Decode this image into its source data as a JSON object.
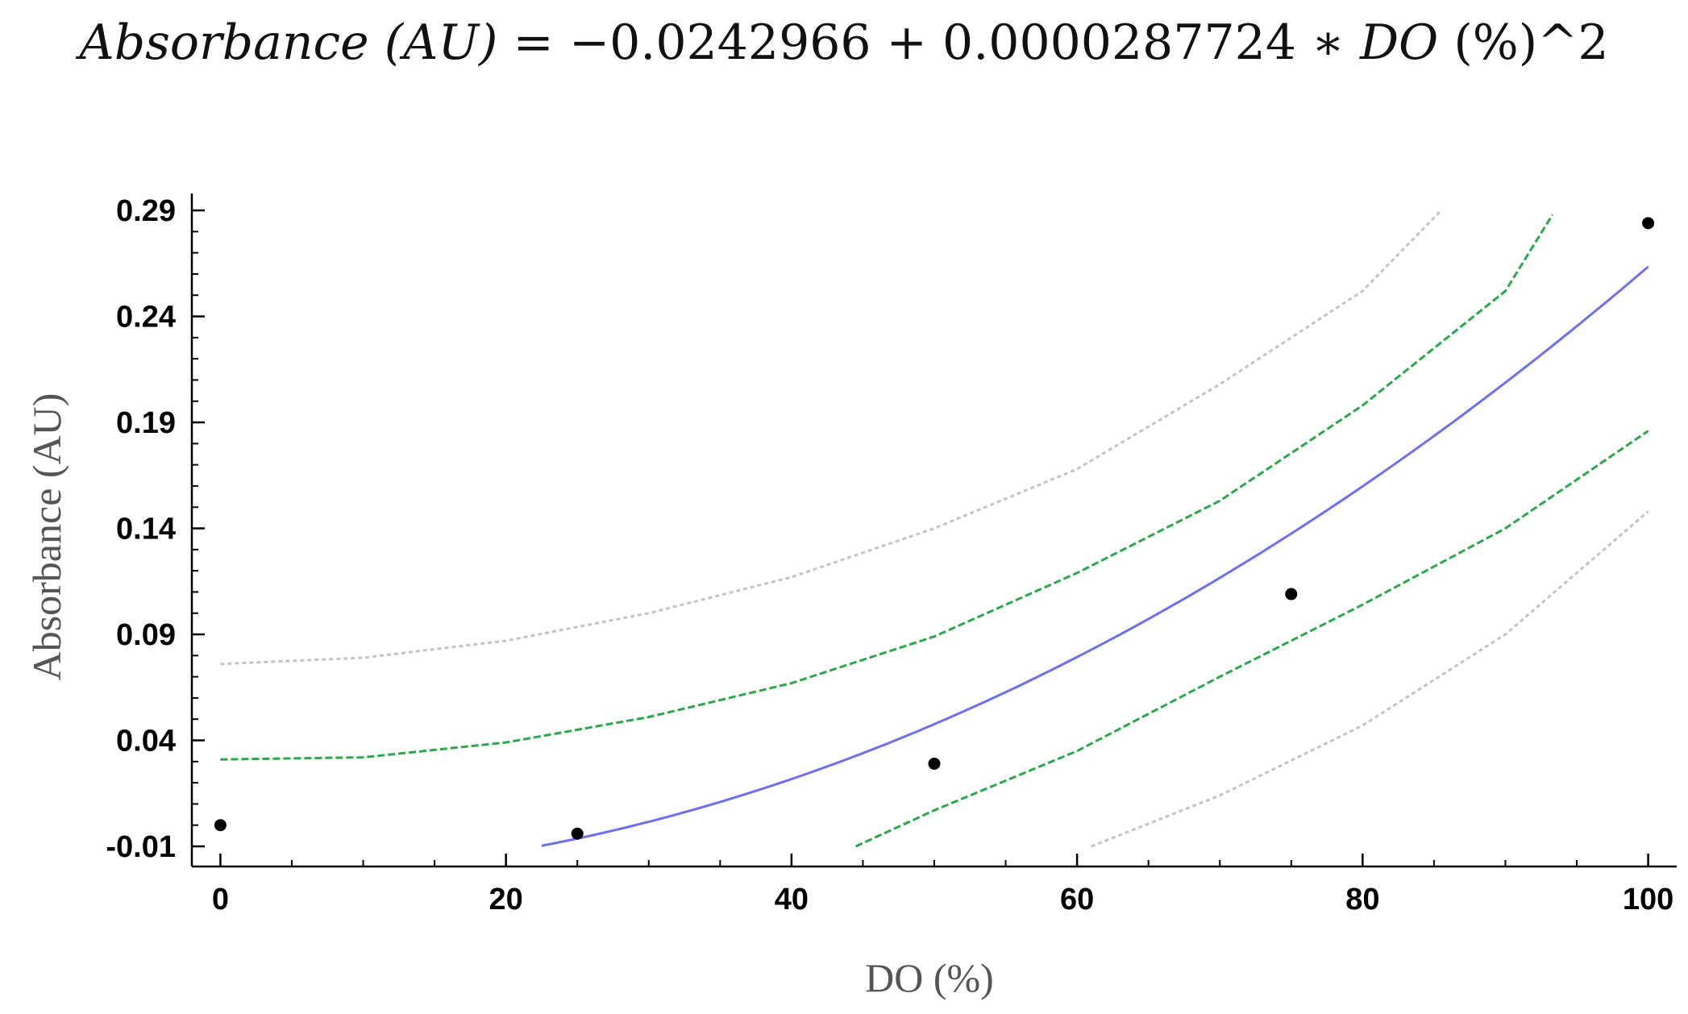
{
  "equation": {
    "lhs": "Absorbance (AU)",
    "eq": " = ",
    "constant": "−0.0242966",
    "plus": " + ",
    "coef": "0.0000287724",
    "times": " ∗ ",
    "var": "DO",
    "tail": " (%)^2"
  },
  "chart_data": {
    "type": "scatter",
    "title": "",
    "xlabel": "DO (%)",
    "ylabel": "Absorbance (AU)",
    "xlim": [
      -2,
      102
    ],
    "ylim": [
      -0.0195,
      0.298
    ],
    "x_ticks": [
      0,
      20,
      40,
      60,
      80,
      100
    ],
    "x_tick_labels": [
      "0",
      "20",
      "40",
      "60",
      "80",
      "100"
    ],
    "x_minor_step": 5,
    "y_ticks": [
      -0.01,
      0.04,
      0.09,
      0.14,
      0.19,
      0.24,
      0.29
    ],
    "y_tick_labels": [
      "-0.01",
      "0.04",
      "0.09",
      "0.14",
      "0.19",
      "0.24",
      "0.29"
    ],
    "y_minor_step": 0.01,
    "grid": false,
    "points": {
      "x": [
        0,
        25,
        50,
        75,
        100
      ],
      "y": [
        0.0,
        -0.004,
        0.029,
        0.109,
        0.284
      ],
      "color": "#000000"
    },
    "fit": {
      "intercept": -0.0242966,
      "coef_x2": 2.87724e-05,
      "x_from": 22.5,
      "x_to": 100,
      "color": "#6f6ff2"
    },
    "confidence_band": {
      "color": "#2aa84a",
      "upper": {
        "x": [
          0,
          10,
          20,
          30,
          40,
          50,
          60,
          70,
          80,
          90,
          93.3
        ],
        "y": [
          0.031,
          0.032,
          0.039,
          0.051,
          0.067,
          0.089,
          0.119,
          0.153,
          0.198,
          0.252,
          0.288
        ]
      },
      "lower": {
        "x": [
          44.5,
          50,
          60,
          70,
          80,
          90,
          100
        ],
        "y": [
          -0.01,
          0.007,
          0.035,
          0.07,
          0.104,
          0.14,
          0.186
        ]
      }
    },
    "prediction_band": {
      "color": "#c4c4c4",
      "upper": {
        "x": [
          0,
          10,
          20,
          30,
          40,
          50,
          60,
          70,
          80,
          85.5
        ],
        "y": [
          0.076,
          0.079,
          0.087,
          0.1,
          0.117,
          0.14,
          0.168,
          0.208,
          0.252,
          0.29
        ]
      },
      "lower": {
        "x": [
          61,
          70,
          80,
          90,
          100
        ],
        "y": [
          -0.01,
          0.014,
          0.047,
          0.09,
          0.148
        ]
      }
    }
  }
}
